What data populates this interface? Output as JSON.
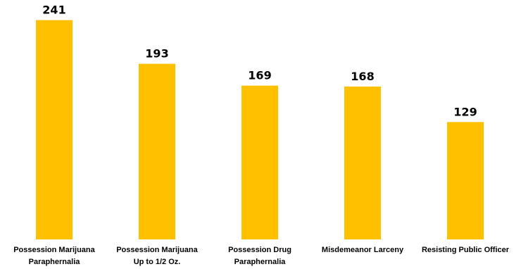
{
  "chart_data": {
    "type": "bar",
    "categories": [
      [
        "Possession Marijuana",
        "Paraphernalia"
      ],
      [
        "Possession Marijuana",
        "Up to 1/2 Oz."
      ],
      [
        "Possession Drug",
        "Paraphernalia"
      ],
      [
        "Misdemeanor Larceny"
      ],
      [
        "Resisting Public Officer"
      ]
    ],
    "values": [
      241,
      193,
      169,
      168,
      129
    ],
    "bar_color": "#FFC000",
    "ylim": [
      0,
      260
    ],
    "grid": false,
    "legend": "none"
  }
}
